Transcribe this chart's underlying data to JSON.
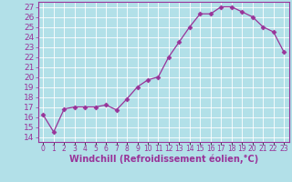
{
  "x": [
    0,
    1,
    2,
    3,
    4,
    5,
    6,
    7,
    8,
    9,
    10,
    11,
    12,
    13,
    14,
    15,
    16,
    17,
    18,
    19,
    20,
    21,
    22,
    23
  ],
  "y": [
    16.2,
    14.5,
    16.8,
    17.0,
    17.0,
    17.0,
    17.2,
    16.7,
    17.8,
    19.0,
    19.7,
    20.0,
    22.0,
    23.5,
    25.0,
    26.3,
    26.3,
    27.0,
    27.0,
    26.5,
    26.0,
    25.0,
    24.5,
    22.5
  ],
  "line_color": "#993399",
  "marker": "D",
  "markersize": 2.5,
  "linewidth": 0.9,
  "xlabel": "Windchill (Refroidissement éolien,°C)",
  "xlabel_fontsize": 7,
  "ylabel_ticks": [
    14,
    15,
    16,
    17,
    18,
    19,
    20,
    21,
    22,
    23,
    24,
    25,
    26,
    27
  ],
  "ylim": [
    13.5,
    27.5
  ],
  "xlim": [
    -0.5,
    23.5
  ],
  "background_color": "#b2e0e8",
  "grid_color": "#ffffff",
  "tick_fontsize": 6.5,
  "xtick_fontsize": 5.5
}
